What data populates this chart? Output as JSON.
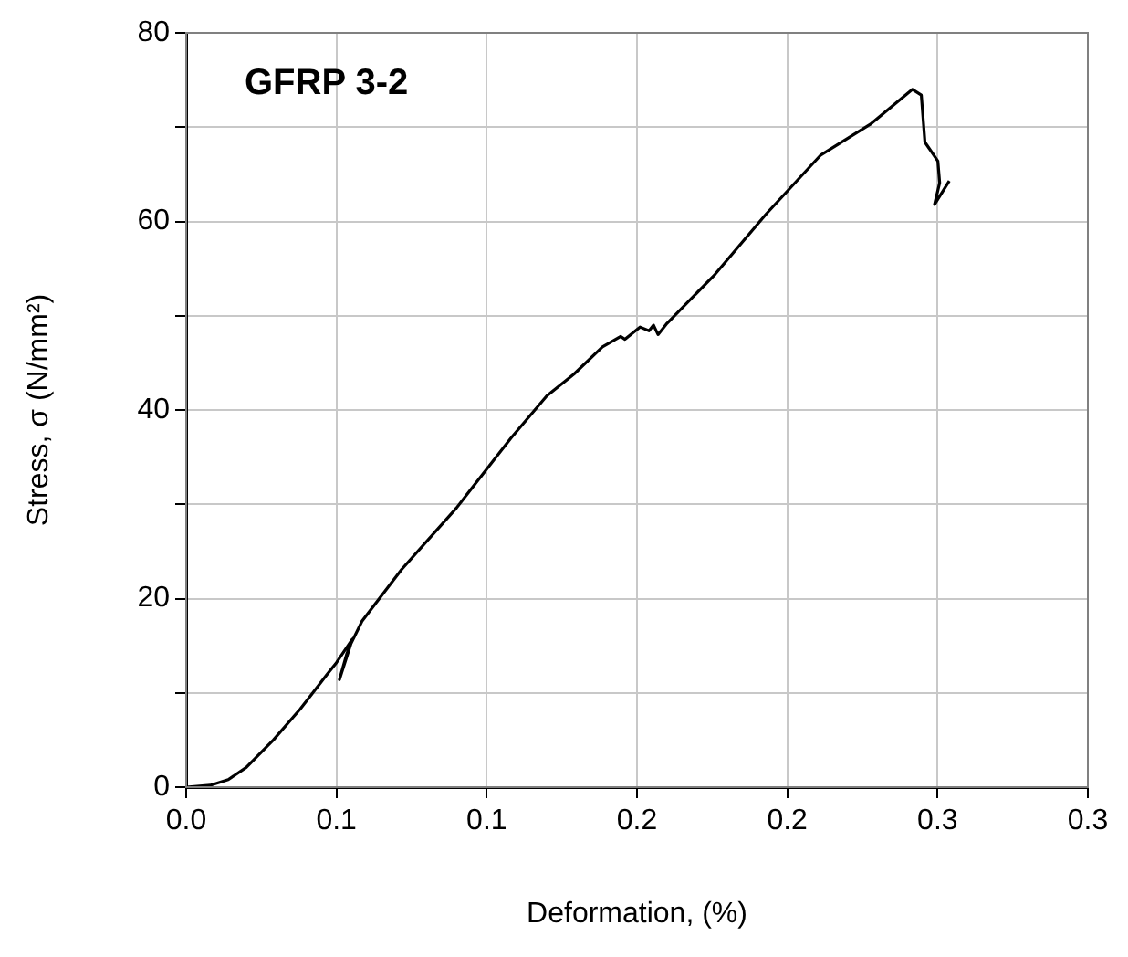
{
  "chart_data": {
    "type": "line",
    "xlabel": "Deformation, (%)",
    "ylabel": "Stress, σ (N/mm²)",
    "annotations": [
      "GFRP 3-2"
    ],
    "xlim": [
      0,
      0.3
    ],
    "ylim": [
      0,
      80
    ],
    "xticks": [
      {
        "value": 0,
        "label": "0.0"
      },
      {
        "value": 0.05,
        "label": "0.1"
      },
      {
        "value": 0.1,
        "label": "0.1"
      },
      {
        "value": 0.15,
        "label": "0.2"
      },
      {
        "value": 0.2,
        "label": "0.2"
      },
      {
        "value": 0.25,
        "label": "0.3"
      },
      {
        "value": 0.3,
        "label": "0.3"
      }
    ],
    "yticks": [
      0,
      {
        "value": 10,
        "label": null
      },
      20,
      {
        "value": 30,
        "label": null
      },
      40,
      {
        "value": 50,
        "label": null
      },
      60,
      {
        "value": 70,
        "label": null
      },
      80
    ],
    "grid": true,
    "legend": false,
    "marker": "none",
    "line_style": "solid",
    "series": [
      {
        "color": "#000000",
        "x": [
          0,
          0.008,
          0.014,
          0.02,
          0.029,
          0.038,
          0.047,
          0.05,
          0.0553,
          0.051,
          0.0534,
          0.0545,
          0.0585,
          0.0717,
          0.0899,
          0.108,
          0.12,
          0.129,
          0.1385,
          0.1446,
          0.146,
          0.151,
          0.154,
          0.1555,
          0.157,
          0.16,
          0.176,
          0.193,
          0.211,
          0.2276,
          0.2416,
          0.2446,
          0.2458,
          0.2501,
          0.2507,
          0.249,
          0.2539
        ],
        "values": [
          0,
          0.2,
          0.8,
          2.1,
          5.0,
          8.3,
          12.0,
          13.2,
          15.7,
          11.4,
          14.1,
          15.0,
          17.6,
          23.1,
          29.6,
          37.0,
          41.5,
          43.8,
          46.7,
          47.8,
          47.5,
          48.8,
          48.4,
          49.0,
          48.0,
          49.2,
          54.4,
          60.8,
          67.0,
          70.3,
          74.0,
          73.4,
          68.4,
          66.4,
          64.1,
          61.8,
          64.3
        ]
      }
    ]
  }
}
